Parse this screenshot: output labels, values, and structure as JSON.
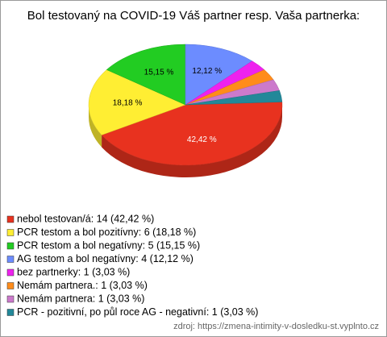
{
  "chart_data": {
    "type": "pie3d",
    "title": "Bol testovaný na COVID-19 Váš partner resp. Vaša partnerka:",
    "categories": [
      "nebol testovan/á: 14 (42,42 %)",
      "PCR testom a bol pozitívny: 6 (18,18 %)",
      "PCR testom a bol negatívny: 5 (15,15 %)",
      "AG testom a bol negatívny: 4 (12,12 %)",
      "bez partnerky: 1 (3,03 %)",
      "Nemám partnera.: 1 (3,03 %)",
      "Nemám partnera: 1 (3,03 %)",
      "PCR - pozitivní, po půl roce AG - negativní: 1 (3,03 %)"
    ],
    "values": [
      42.42,
      18.18,
      15.15,
      12.12,
      3.03,
      3.03,
      3.03,
      3.03
    ],
    "value_labels": [
      "42,42 %",
      "18,18 %",
      "15,15 %",
      "12,12 %",
      null,
      null,
      null,
      null
    ],
    "colors": [
      "#e8321f",
      "#ffee33",
      "#22cc22",
      "#6c8cff",
      "#ee22ee",
      "#ff8c1a",
      "#cc7acc",
      "#228899"
    ],
    "source": "zdroj: https://zmena-intimity-v-dosledku-st.vyplnto.cz"
  }
}
